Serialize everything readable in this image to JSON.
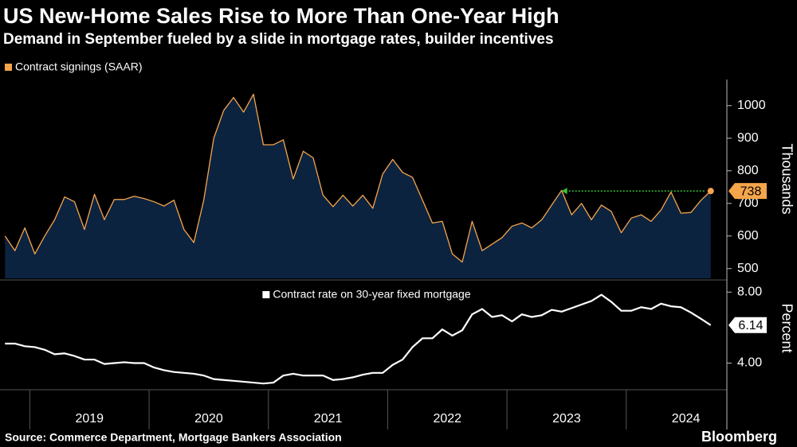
{
  "chart_data": [
    {
      "type": "area",
      "title": "US New-Home Sales Rise to More Than One-Year High",
      "subtitle": "Demand in September fueled by a slide in mortgage rates, builder incentives",
      "y_label": "Thousands",
      "x": [
        2018.792,
        2018.875,
        2018.958,
        2019.042,
        2019.125,
        2019.208,
        2019.292,
        2019.375,
        2019.458,
        2019.542,
        2019.625,
        2019.708,
        2019.792,
        2019.875,
        2019.958,
        2020.042,
        2020.125,
        2020.208,
        2020.292,
        2020.375,
        2020.458,
        2020.542,
        2020.625,
        2020.708,
        2020.792,
        2020.875,
        2020.958,
        2021.042,
        2021.125,
        2021.208,
        2021.292,
        2021.375,
        2021.458,
        2021.542,
        2021.625,
        2021.708,
        2021.792,
        2021.875,
        2021.958,
        2022.042,
        2022.125,
        2022.208,
        2022.292,
        2022.375,
        2022.458,
        2022.542,
        2022.625,
        2022.708,
        2022.792,
        2022.875,
        2022.958,
        2023.042,
        2023.125,
        2023.208,
        2023.292,
        2023.375,
        2023.458,
        2023.542,
        2023.625,
        2023.708,
        2023.792,
        2023.875,
        2023.958,
        2024.042,
        2024.125,
        2024.208,
        2024.292,
        2024.375,
        2024.458,
        2024.542,
        2024.625,
        2024.708
      ],
      "series": [
        {
          "name": "Contract signings (SAAR)",
          "color": "#f5a54a",
          "fill": "#0c2340",
          "values": [
            600,
            555,
            625,
            545,
            600,
            650,
            720,
            705,
            620,
            728,
            650,
            712,
            712,
            722,
            715,
            705,
            692,
            710,
            620,
            580,
            710,
            900,
            985,
            1025,
            980,
            1035,
            880,
            880,
            895,
            775,
            860,
            840,
            725,
            690,
            725,
            692,
            725,
            685,
            790,
            835,
            795,
            780,
            710,
            640,
            645,
            545,
            520,
            645,
            555,
            575,
            595,
            630,
            640,
            625,
            650,
            695,
            740,
            665,
            700,
            650,
            695,
            675,
            610,
            655,
            665,
            645,
            680,
            735,
            670,
            672,
            709,
            738
          ]
        }
      ],
      "xlim": [
        2018.75,
        2024.83
      ],
      "ylim": [
        470,
        1080
      ],
      "yticks": [
        500,
        600,
        700,
        800,
        900,
        1000
      ],
      "annotation_color": "#3ac23a"
    },
    {
      "type": "line",
      "y_label": "Percent",
      "x": [
        2018.792,
        2018.875,
        2018.958,
        2019.042,
        2019.125,
        2019.208,
        2019.292,
        2019.375,
        2019.458,
        2019.542,
        2019.625,
        2019.708,
        2019.792,
        2019.875,
        2019.958,
        2020.042,
        2020.125,
        2020.208,
        2020.292,
        2020.375,
        2020.458,
        2020.542,
        2020.625,
        2020.708,
        2020.792,
        2020.875,
        2020.958,
        2021.042,
        2021.125,
        2021.208,
        2021.292,
        2021.375,
        2021.458,
        2021.542,
        2021.625,
        2021.708,
        2021.792,
        2021.875,
        2021.958,
        2022.042,
        2022.125,
        2022.208,
        2022.292,
        2022.375,
        2022.458,
        2022.542,
        2022.625,
        2022.708,
        2022.792,
        2022.875,
        2022.958,
        2023.042,
        2023.125,
        2023.208,
        2023.292,
        2023.375,
        2023.458,
        2023.542,
        2023.625,
        2023.708,
        2023.792,
        2023.875,
        2023.958,
        2024.042,
        2024.125,
        2024.208,
        2024.292,
        2024.375,
        2024.458,
        2024.542,
        2024.625,
        2024.708
      ],
      "series": [
        {
          "name": "Contract rate on 30-year fixed mortgage",
          "color": "#ffffff",
          "values": [
            5.1,
            5.1,
            4.95,
            4.9,
            4.75,
            4.5,
            4.55,
            4.4,
            4.2,
            4.2,
            3.95,
            4.0,
            4.05,
            4.0,
            4.0,
            3.75,
            3.6,
            3.5,
            3.45,
            3.4,
            3.3,
            3.1,
            3.05,
            3.0,
            2.95,
            2.9,
            2.85,
            2.9,
            3.3,
            3.4,
            3.3,
            3.3,
            3.3,
            3.05,
            3.1,
            3.2,
            3.35,
            3.45,
            3.45,
            3.9,
            4.2,
            4.9,
            5.4,
            5.4,
            5.9,
            5.55,
            5.85,
            6.75,
            7.05,
            6.6,
            6.7,
            6.35,
            6.75,
            6.6,
            6.7,
            7.0,
            6.9,
            7.1,
            7.3,
            7.5,
            7.85,
            7.45,
            6.95,
            6.95,
            7.15,
            7.05,
            7.35,
            7.2,
            7.15,
            6.85,
            6.5,
            6.14
          ]
        }
      ],
      "xlim": [
        2018.75,
        2024.83
      ],
      "ylim": [
        2.5,
        8.55
      ],
      "yticks": [
        {
          "value": 4,
          "label": "4.00"
        },
        {
          "value": 8,
          "label": "8.00"
        }
      ],
      "xticks": [
        2019,
        2020,
        2021,
        2022,
        2023,
        2024
      ]
    }
  ],
  "source": "Source: Commerce Department, Mortgage Bankers Association",
  "brand": "Bloomberg"
}
